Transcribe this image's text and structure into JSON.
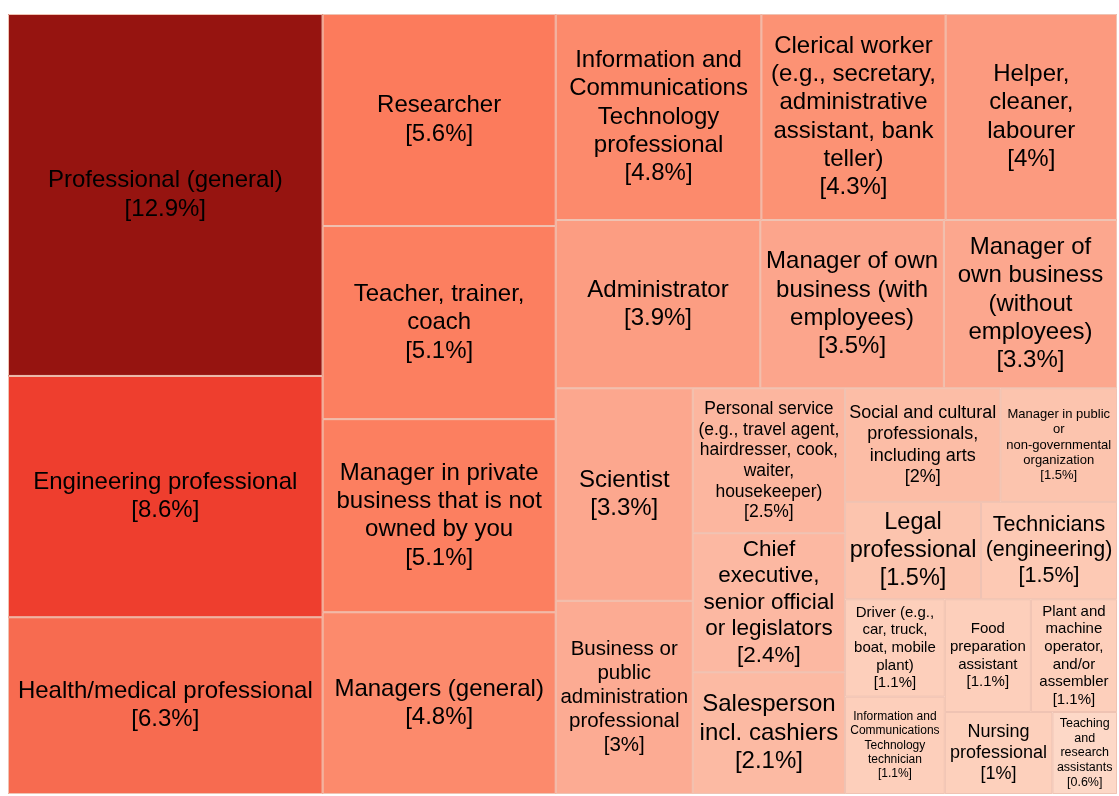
{
  "chart_data": {
    "type": "other",
    "categories": [
      "Professional (general)",
      "Engineering professional",
      "Health/medical professional",
      "Researcher",
      "Teacher, trainer, coach",
      "Manager in private business that is not owned by you",
      "Managers (general)",
      "Information and Communications Technology professional",
      "Clerical worker (e.g., secretary, administrative assistant, bank teller)",
      "Helper, cleaner, labourer",
      "Administrator",
      "Manager of own business (with employees)",
      "Manager of own business (without employees)",
      "Scientist",
      "Business or public administration professional",
      "Personal service (e.g., travel agent, hairdresser, cook, waiter, housekeeper)",
      "Chief executive, senior official or legislators",
      "Salesperson incl. cashiers",
      "Social and cultural professionals, including arts",
      "Manager in public or non-governmental organization",
      "Legal professional",
      "Technicians (engineering)",
      "Driver (e.g., car, truck, boat, mobile plant)",
      "Information and Communications Technology technician",
      "Food preparation assistant",
      "Plant and machine operator, and/or assembler",
      "Nursing professional",
      "Teaching and research assistants"
    ],
    "values": [
      12.9,
      8.6,
      6.3,
      5.6,
      5.1,
      5.1,
      4.8,
      4.8,
      4.3,
      4,
      3.9,
      3.5,
      3.3,
      3.3,
      3,
      2.5,
      2.4,
      2.1,
      2,
      1.5,
      1.5,
      1.5,
      1.1,
      1.1,
      1.1,
      1.1,
      1,
      0.6
    ],
    "value_labels": [
      "[12.9%]",
      "[8.6%]",
      "[6.3%]",
      "[5.6%]",
      "[5.1%]",
      "[5.1%]",
      "[4.8%]",
      "[4.8%]",
      "[4.3%]",
      "[4%]",
      "[3.9%]",
      "[3.5%]",
      "[3.3%]",
      "[3.3%]",
      "[3%]",
      "[2.5%]",
      "[2.4%]",
      "[2.1%]",
      "[2%]",
      "[1.5%]",
      "[1.5%]",
      "[1.5%]",
      "[1.1%]",
      "[1.1%]",
      "[1.1%]",
      "[1.1%]",
      "[1%]",
      "[0.6%]"
    ],
    "colors": [
      "#961410",
      "#ee3e2e",
      "#f76b50",
      "#fc7b5c",
      "#fc7f60",
      "#fc7f60",
      "#fc8a6c",
      "#fc8a6c",
      "#fc9274",
      "#fc9a7f",
      "#fc9d82",
      "#fca58c",
      "#fca78e",
      "#fca78e",
      "#fcab93",
      "#fcb69f",
      "#fcb8a2",
      "#fcbaa3",
      "#fcbda6",
      "#fcc4ae",
      "#fcc4ae",
      "#fdc9b4",
      "#fdcfbb",
      "#fdcfbb",
      "#fdcfbb",
      "#fdcfbb",
      "#fdd0bc",
      "#fdd8c7"
    ]
  }
}
